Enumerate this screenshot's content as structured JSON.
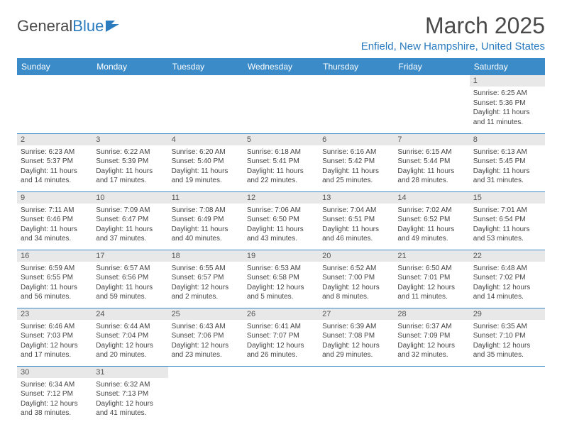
{
  "logo": {
    "text1": "General",
    "text2": "Blue"
  },
  "title": "March 2025",
  "location": "Enfield, New Hampshire, United States",
  "colors": {
    "header_bg": "#3b8bc9",
    "header_text": "#ffffff",
    "accent": "#2b7bbf",
    "daynum_bg": "#e8e8e8",
    "body_text": "#444"
  },
  "weekdays": [
    "Sunday",
    "Monday",
    "Tuesday",
    "Wednesday",
    "Thursday",
    "Friday",
    "Saturday"
  ],
  "weeks": [
    [
      null,
      null,
      null,
      null,
      null,
      null,
      {
        "n": "1",
        "sr": "6:25 AM",
        "ss": "5:36 PM",
        "dl": "11 hours and 11 minutes."
      }
    ],
    [
      {
        "n": "2",
        "sr": "6:23 AM",
        "ss": "5:37 PM",
        "dl": "11 hours and 14 minutes."
      },
      {
        "n": "3",
        "sr": "6:22 AM",
        "ss": "5:39 PM",
        "dl": "11 hours and 17 minutes."
      },
      {
        "n": "4",
        "sr": "6:20 AM",
        "ss": "5:40 PM",
        "dl": "11 hours and 19 minutes."
      },
      {
        "n": "5",
        "sr": "6:18 AM",
        "ss": "5:41 PM",
        "dl": "11 hours and 22 minutes."
      },
      {
        "n": "6",
        "sr": "6:16 AM",
        "ss": "5:42 PM",
        "dl": "11 hours and 25 minutes."
      },
      {
        "n": "7",
        "sr": "6:15 AM",
        "ss": "5:44 PM",
        "dl": "11 hours and 28 minutes."
      },
      {
        "n": "8",
        "sr": "6:13 AM",
        "ss": "5:45 PM",
        "dl": "11 hours and 31 minutes."
      }
    ],
    [
      {
        "n": "9",
        "sr": "7:11 AM",
        "ss": "6:46 PM",
        "dl": "11 hours and 34 minutes."
      },
      {
        "n": "10",
        "sr": "7:09 AM",
        "ss": "6:47 PM",
        "dl": "11 hours and 37 minutes."
      },
      {
        "n": "11",
        "sr": "7:08 AM",
        "ss": "6:49 PM",
        "dl": "11 hours and 40 minutes."
      },
      {
        "n": "12",
        "sr": "7:06 AM",
        "ss": "6:50 PM",
        "dl": "11 hours and 43 minutes."
      },
      {
        "n": "13",
        "sr": "7:04 AM",
        "ss": "6:51 PM",
        "dl": "11 hours and 46 minutes."
      },
      {
        "n": "14",
        "sr": "7:02 AM",
        "ss": "6:52 PM",
        "dl": "11 hours and 49 minutes."
      },
      {
        "n": "15",
        "sr": "7:01 AM",
        "ss": "6:54 PM",
        "dl": "11 hours and 53 minutes."
      }
    ],
    [
      {
        "n": "16",
        "sr": "6:59 AM",
        "ss": "6:55 PM",
        "dl": "11 hours and 56 minutes."
      },
      {
        "n": "17",
        "sr": "6:57 AM",
        "ss": "6:56 PM",
        "dl": "11 hours and 59 minutes."
      },
      {
        "n": "18",
        "sr": "6:55 AM",
        "ss": "6:57 PM",
        "dl": "12 hours and 2 minutes."
      },
      {
        "n": "19",
        "sr": "6:53 AM",
        "ss": "6:58 PM",
        "dl": "12 hours and 5 minutes."
      },
      {
        "n": "20",
        "sr": "6:52 AM",
        "ss": "7:00 PM",
        "dl": "12 hours and 8 minutes."
      },
      {
        "n": "21",
        "sr": "6:50 AM",
        "ss": "7:01 PM",
        "dl": "12 hours and 11 minutes."
      },
      {
        "n": "22",
        "sr": "6:48 AM",
        "ss": "7:02 PM",
        "dl": "12 hours and 14 minutes."
      }
    ],
    [
      {
        "n": "23",
        "sr": "6:46 AM",
        "ss": "7:03 PM",
        "dl": "12 hours and 17 minutes."
      },
      {
        "n": "24",
        "sr": "6:44 AM",
        "ss": "7:04 PM",
        "dl": "12 hours and 20 minutes."
      },
      {
        "n": "25",
        "sr": "6:43 AM",
        "ss": "7:06 PM",
        "dl": "12 hours and 23 minutes."
      },
      {
        "n": "26",
        "sr": "6:41 AM",
        "ss": "7:07 PM",
        "dl": "12 hours and 26 minutes."
      },
      {
        "n": "27",
        "sr": "6:39 AM",
        "ss": "7:08 PM",
        "dl": "12 hours and 29 minutes."
      },
      {
        "n": "28",
        "sr": "6:37 AM",
        "ss": "7:09 PM",
        "dl": "12 hours and 32 minutes."
      },
      {
        "n": "29",
        "sr": "6:35 AM",
        "ss": "7:10 PM",
        "dl": "12 hours and 35 minutes."
      }
    ],
    [
      {
        "n": "30",
        "sr": "6:34 AM",
        "ss": "7:12 PM",
        "dl": "12 hours and 38 minutes."
      },
      {
        "n": "31",
        "sr": "6:32 AM",
        "ss": "7:13 PM",
        "dl": "12 hours and 41 minutes."
      },
      null,
      null,
      null,
      null,
      null
    ]
  ],
  "labels": {
    "sunrise": "Sunrise:",
    "sunset": "Sunset:",
    "daylight": "Daylight:"
  }
}
